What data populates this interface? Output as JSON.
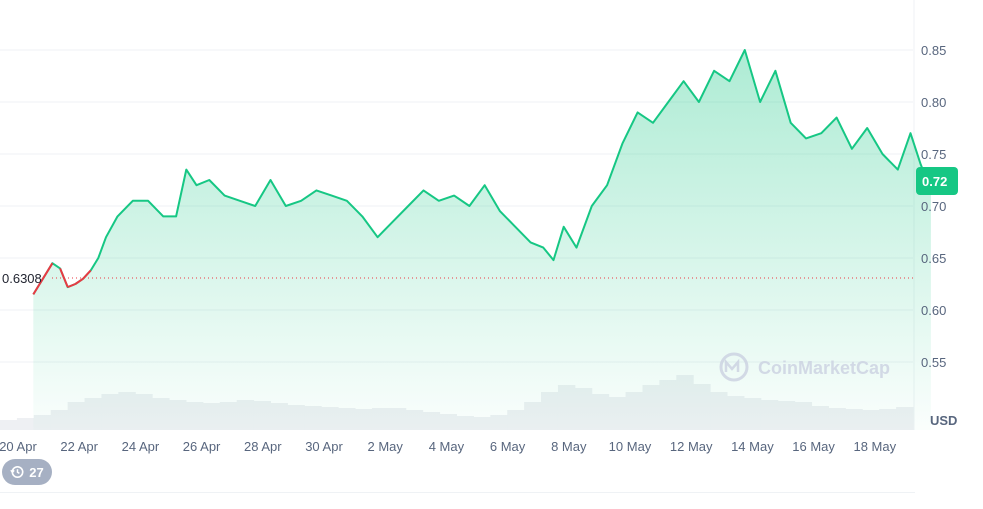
{
  "chart_data": {
    "type": "area",
    "title": "",
    "ylabel": "USD",
    "ylim": [
      0.5,
      0.9
    ],
    "yticks": [
      "0.55",
      "0.60",
      "0.65",
      "0.70",
      "0.75",
      "0.80",
      "0.85"
    ],
    "xticks": [
      "20 Apr",
      "22 Apr",
      "24 Apr",
      "26 Apr",
      "28 Apr",
      "30 Apr",
      "2 May",
      "4 May",
      "6 May",
      "8 May",
      "10 May",
      "12 May",
      "14 May",
      "16 May",
      "18 May"
    ],
    "reference_price": 0.6308,
    "reference_label": "0.6308",
    "current_price_label": "0.72",
    "colors": {
      "up": "#16c784",
      "down": "#ea3943",
      "axis_text": "#58667e",
      "grid": "#eff2f5"
    },
    "series": [
      {
        "x": [
          "2024-04-20",
          "2024-04-21",
          "2024-04-21",
          "2024-04-21",
          "2024-04-21",
          "2024-04-22",
          "2024-04-22",
          "2024-04-22",
          "2024-04-22",
          "2024-04-23",
          "2024-04-23",
          "2024-04-24",
          "2024-04-24",
          "2024-04-25",
          "2024-04-25",
          "2024-04-25",
          "2024-04-26",
          "2024-04-26",
          "2024-04-27",
          "2024-04-27",
          "2024-04-28",
          "2024-04-28",
          "2024-04-29",
          "2024-04-29",
          "2024-04-30",
          "2024-04-30",
          "2024-05-01",
          "2024-05-01",
          "2024-05-02",
          "2024-05-02",
          "2024-05-03",
          "2024-05-03",
          "2024-05-04",
          "2024-05-04",
          "2024-05-05",
          "2024-05-05",
          "2024-05-06",
          "2024-05-06",
          "2024-05-07",
          "2024-05-07",
          "2024-05-07",
          "2024-05-08",
          "2024-05-08",
          "2024-05-09",
          "2024-05-09",
          "2024-05-10",
          "2024-05-10",
          "2024-05-11",
          "2024-05-11",
          "2024-05-12",
          "2024-05-12",
          "2024-05-13",
          "2024-05-13",
          "2024-05-14",
          "2024-05-14",
          "2024-05-15",
          "2024-05-15",
          "2024-05-16",
          "2024-05-16",
          "2024-05-17",
          "2024-05-17",
          "2024-05-18",
          "2024-05-18",
          "2024-05-19",
          "2024-05-19",
          "2024-05-19"
        ],
        "values": [
          0.615,
          0.645,
          0.64,
          0.622,
          0.625,
          0.63,
          0.638,
          0.65,
          0.67,
          0.69,
          0.705,
          0.705,
          0.69,
          0.69,
          0.735,
          0.72,
          0.725,
          0.71,
          0.705,
          0.7,
          0.725,
          0.7,
          0.705,
          0.715,
          0.71,
          0.705,
          0.69,
          0.67,
          0.685,
          0.7,
          0.715,
          0.705,
          0.71,
          0.7,
          0.72,
          0.695,
          0.68,
          0.665,
          0.66,
          0.648,
          0.68,
          0.66,
          0.7,
          0.72,
          0.76,
          0.79,
          0.78,
          0.8,
          0.82,
          0.8,
          0.83,
          0.82,
          0.85,
          0.8,
          0.83,
          0.78,
          0.765,
          0.77,
          0.785,
          0.755,
          0.775,
          0.75,
          0.735,
          0.77,
          0.74,
          0.715
        ]
      }
    ],
    "volume": {
      "values": [
        10,
        12,
        15,
        20,
        28,
        32,
        36,
        38,
        36,
        32,
        30,
        28,
        27,
        28,
        30,
        29,
        27,
        25,
        24,
        23,
        22,
        21,
        22,
        22,
        20,
        18,
        16,
        14,
        13,
        15,
        20,
        28,
        38,
        45,
        42,
        36,
        33,
        38,
        45,
        50,
        55,
        46,
        38,
        34,
        32,
        30,
        29,
        28,
        24,
        22,
        21,
        20,
        21,
        23
      ]
    },
    "watermark": "CoinMarketCap",
    "history_badge": "27"
  }
}
